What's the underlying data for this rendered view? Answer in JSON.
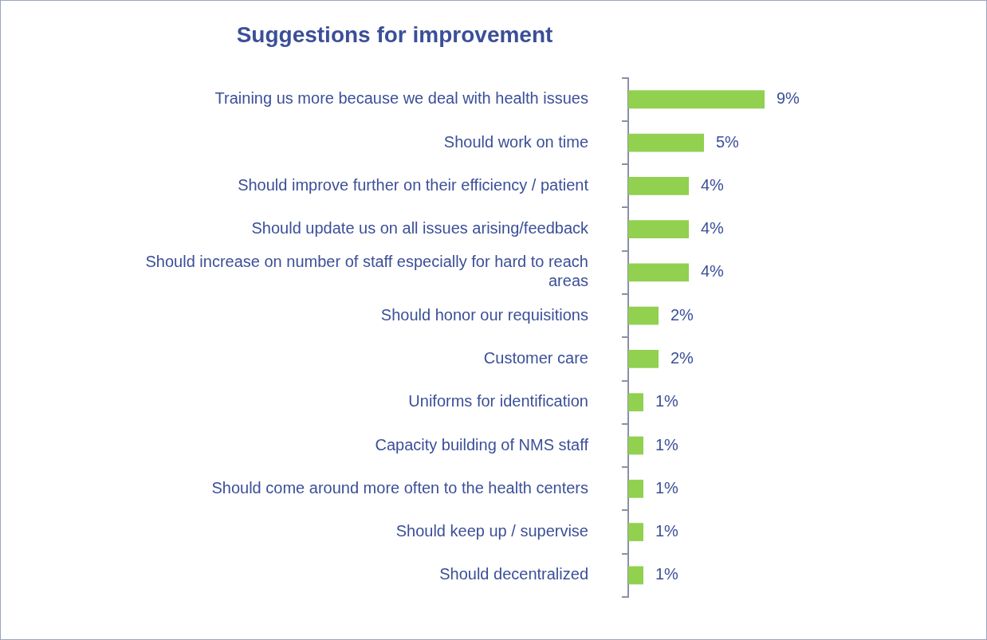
{
  "chart_data": {
    "type": "bar",
    "orientation": "horizontal",
    "title": "Suggestions for improvement",
    "categories": [
      "Training us more because we deal with health issues",
      "Should work on time",
      "Should improve further on their efficiency / patient",
      "Should update us on all issues arising/feedback",
      "Should increase on number of staff especially for hard to reach areas",
      "Should honor our requisitions",
      "Customer care",
      "Uniforms for identification",
      "Capacity building of NMS staff",
      "Should come around more often to the health centers",
      "Should keep up / supervise",
      "Should decentralized"
    ],
    "values": [
      9,
      5,
      4,
      4,
      4,
      2,
      2,
      1,
      1,
      1,
      1,
      1
    ],
    "value_labels": [
      "9%",
      "5%",
      "4%",
      "4%",
      "4%",
      "2%",
      "2%",
      "1%",
      "1%",
      "1%",
      "1%",
      "1%"
    ],
    "color": "#92d050",
    "legend": false,
    "tick_labels": "y"
  }
}
